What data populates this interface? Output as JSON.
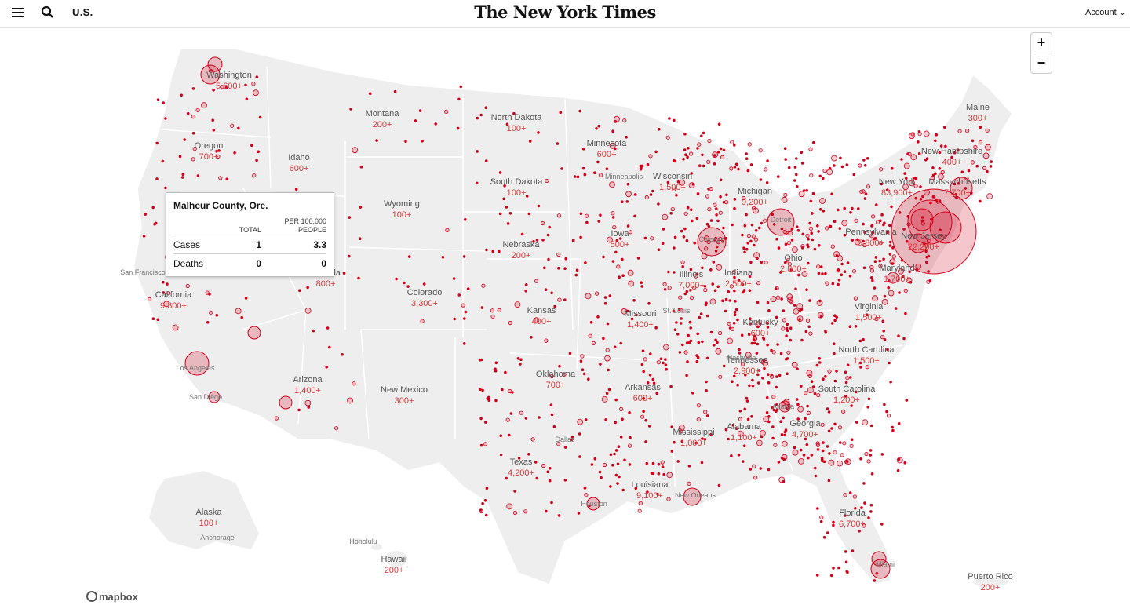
{
  "header": {
    "section": "U.S.",
    "logo": "The New York Times",
    "account": "Account"
  },
  "zoom": {
    "in": "+",
    "out": "−"
  },
  "tooltip": {
    "title": "Malheur County, Ore.",
    "col_total": "TOTAL",
    "col_per_line1": "PER 100,000",
    "col_per_line2": "PEOPLE",
    "rows": [
      {
        "label": "Cases",
        "total": "1",
        "per": "3.3"
      },
      {
        "label": "Deaths",
        "total": "0",
        "per": "0"
      }
    ]
  },
  "attribution": "mapbox",
  "colors": {
    "accent": "#d0021b",
    "land": "#eeeeee",
    "border": "#ffffff"
  },
  "states": [
    {
      "name": "Washington",
      "count": "5,600+"
    },
    {
      "name": "Oregon",
      "count": "700+"
    },
    {
      "name": "Idaho",
      "count": "600+"
    },
    {
      "name": "Montana",
      "count": "200+"
    },
    {
      "name": "North Dakota",
      "count": "100+"
    },
    {
      "name": "Minnesota",
      "count": "600+"
    },
    {
      "name": "Wisconsin",
      "count": "1,500+"
    },
    {
      "name": "Michigan",
      "count": "9,200+"
    },
    {
      "name": "South Dakota",
      "count": "100+"
    },
    {
      "name": "Wyoming",
      "count": "100+"
    },
    {
      "name": "Nebraska",
      "count": "200+"
    },
    {
      "name": "Iowa",
      "count": "500+"
    },
    {
      "name": "Illinois",
      "count": "7,000+"
    },
    {
      "name": "Indiana",
      "count": "2,500+"
    },
    {
      "name": "Ohio",
      "count": "2,800+"
    },
    {
      "name": "Pennsylvania",
      "count": "5,800+"
    },
    {
      "name": "New York",
      "count": "83,900+"
    },
    {
      "name": "New Jersey",
      "count": "22,200+"
    },
    {
      "name": "New Hampshire",
      "count": "400+"
    },
    {
      "name": "Massachusetts",
      "count": "7,700+"
    },
    {
      "name": "Maine",
      "count": "300+"
    },
    {
      "name": "Maryland",
      "count": "1,700+"
    },
    {
      "name": "Virginia",
      "count": "1,500+"
    },
    {
      "name": "California",
      "count": "9,800+"
    },
    {
      "name": "Nevada",
      "count": "800+"
    },
    {
      "name": "Colorado",
      "count": "3,300+"
    },
    {
      "name": "Kansas",
      "count": "400+"
    },
    {
      "name": "Missouri",
      "count": "1,400+"
    },
    {
      "name": "Kentucky",
      "count": "600+"
    },
    {
      "name": "Tennessee",
      "count": "2,900+"
    },
    {
      "name": "North Carolina",
      "count": "1,500+"
    },
    {
      "name": "South Carolina",
      "count": "1,200+"
    },
    {
      "name": "Georgia",
      "count": "4,700+"
    },
    {
      "name": "Alabama",
      "count": "1,100+"
    },
    {
      "name": "Mississippi",
      "count": "1,000+"
    },
    {
      "name": "Arkansas",
      "count": "600+"
    },
    {
      "name": "Oklahoma",
      "count": "700+"
    },
    {
      "name": "Arizona",
      "count": "1,400+"
    },
    {
      "name": "New Mexico",
      "count": "300+"
    },
    {
      "name": "Texas",
      "count": "4,200+"
    },
    {
      "name": "Louisiana",
      "count": "9,100+"
    },
    {
      "name": "Florida",
      "count": "6,700+"
    },
    {
      "name": "Alaska",
      "count": "100+"
    },
    {
      "name": "Hawaii",
      "count": "200+"
    },
    {
      "name": "Puerto Rico",
      "count": "200+"
    }
  ],
  "cities": [
    "San Francisco",
    "Los Angeles",
    "San Diego",
    "Chicago",
    "Detroit",
    "Minneapolis",
    "St. Louis",
    "Nashville",
    "Atlanta",
    "Dallas",
    "Houston",
    "New Orleans",
    "Miami",
    "Anchorage",
    "Honolulu"
  ]
}
